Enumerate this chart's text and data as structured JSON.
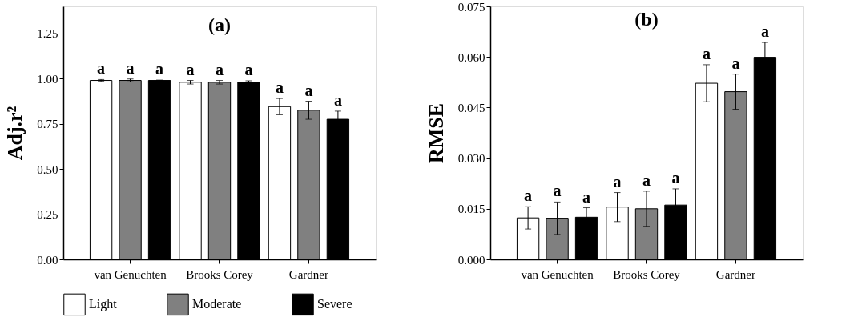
{
  "chart_data": [
    {
      "type": "bar",
      "title": "(a)",
      "ylabel": "Adj.r²",
      "categories": [
        "van Genuchten",
        "Brooks Corey",
        "Gardner"
      ],
      "series": [
        {
          "name": "Light",
          "color": "#ffffff",
          "values": [
            0.99,
            0.98,
            0.845
          ],
          "errors": [
            0.005,
            0.01,
            0.045
          ]
        },
        {
          "name": "Moderate",
          "color": "#808080",
          "values": [
            0.99,
            0.98,
            0.825
          ],
          "errors": [
            0.008,
            0.01,
            0.05
          ]
        },
        {
          "name": "Severe",
          "color": "#000000",
          "values": [
            0.99,
            0.98,
            0.775
          ],
          "errors": [
            0.002,
            0.008,
            0.045
          ]
        }
      ],
      "ylim": [
        0,
        1.4
      ],
      "yticks": [
        {
          "value": 0,
          "label": "0.00"
        },
        0.25,
        {
          "value": 0.5,
          "label": "0.50"
        },
        0.75,
        {
          "value": 1,
          "label": "1.00"
        },
        1.25
      ],
      "annotations": [
        "a",
        "a",
        "a",
        "a",
        "a",
        "a",
        "a",
        "a",
        "a"
      ],
      "legend": "bottom",
      "grid": false
    },
    {
      "type": "bar",
      "title": "(b)",
      "ylabel": "RMSE",
      "categories": [
        "van Genuchten",
        "Brooks Corey",
        "Gardner"
      ],
      "series": [
        {
          "name": "Light",
          "color": "#ffffff",
          "values": [
            0.0123,
            0.0155,
            0.0522
          ],
          "errors": [
            0.0033,
            0.0043,
            0.0055
          ]
        },
        {
          "name": "Moderate",
          "color": "#808080",
          "values": [
            0.0122,
            0.015,
            0.0497
          ],
          "errors": [
            0.0048,
            0.0052,
            0.0052
          ]
        },
        {
          "name": "Severe",
          "color": "#000000",
          "values": [
            0.0125,
            0.0161,
            0.0599
          ],
          "errors": [
            0.0028,
            0.0048,
            0.0044
          ]
        }
      ],
      "ylim": [
        0,
        0.075
      ],
      "yticks": [
        {
          "value": 0,
          "label": "0.000"
        },
        0.015,
        {
          "value": 0.03,
          "label": "0.030"
        },
        0.045,
        {
          "value": 0.06,
          "label": "0.060"
        },
        0.075
      ],
      "annotations": [
        "a",
        "a",
        "a",
        "a",
        "a",
        "a",
        "a",
        "a",
        "a"
      ],
      "legend": "bottom",
      "grid": false
    }
  ]
}
